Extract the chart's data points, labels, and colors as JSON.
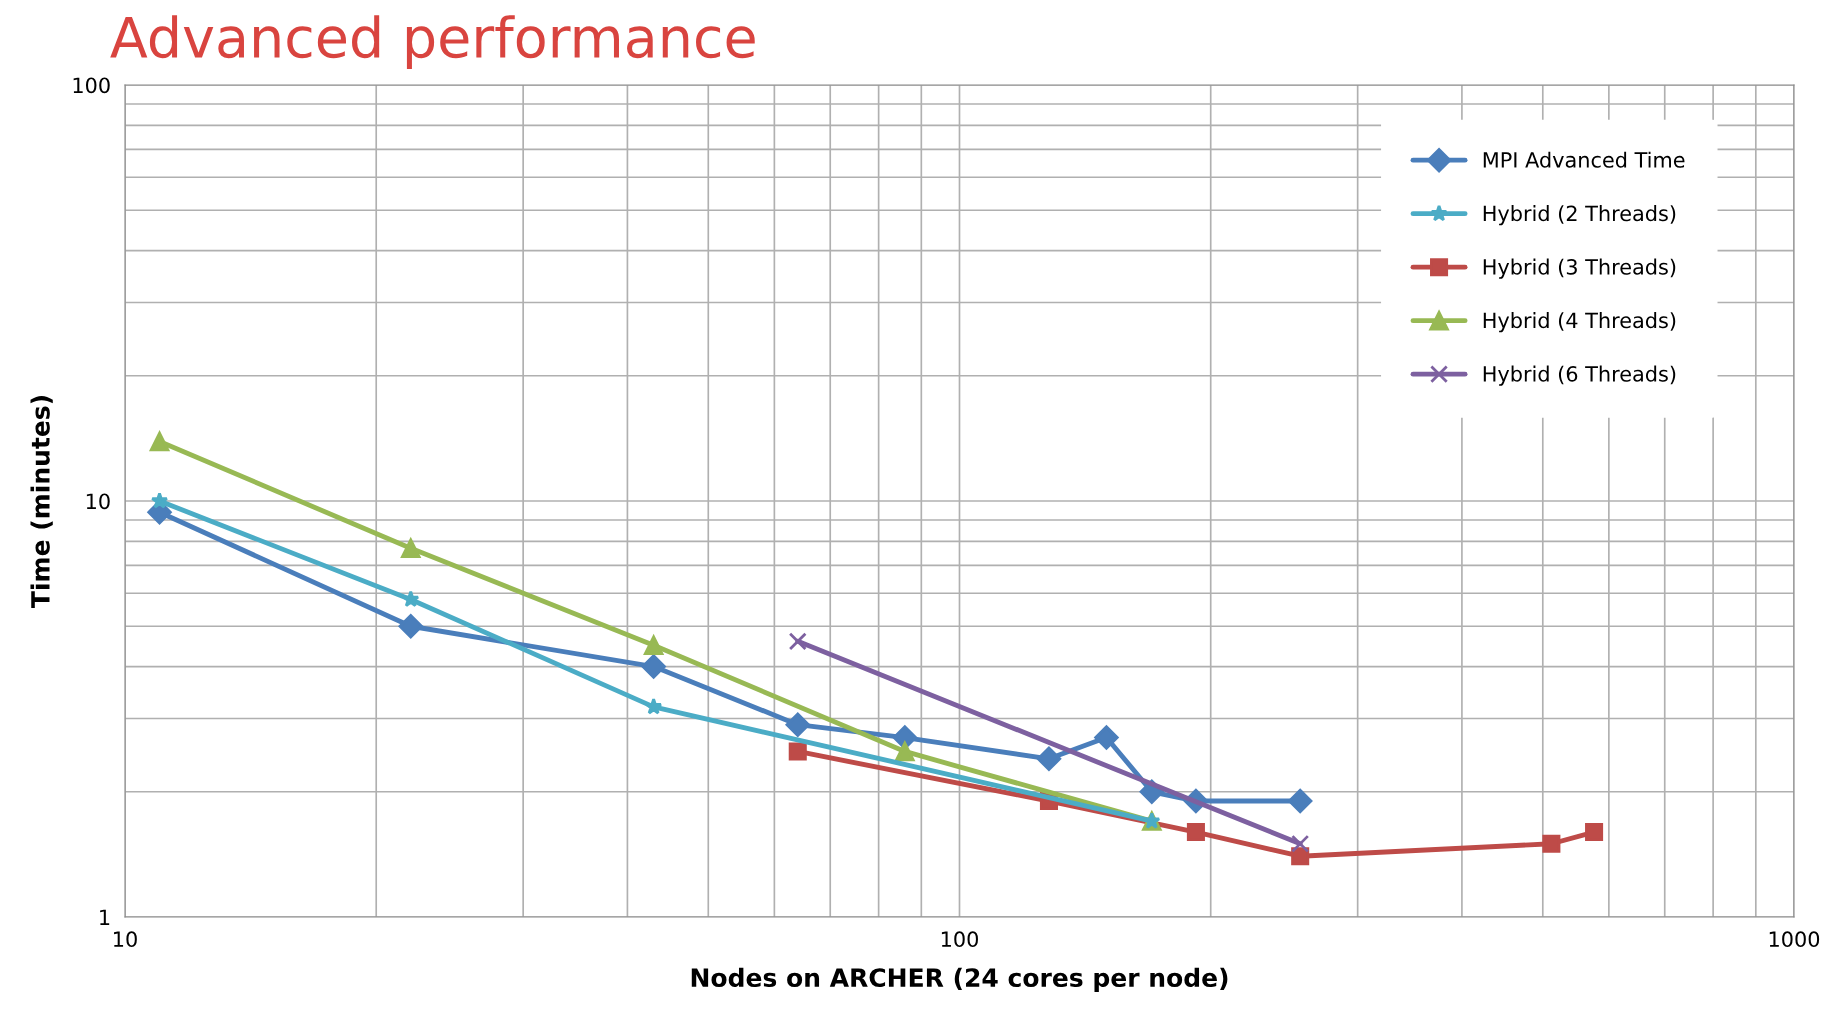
{
  "chart_data": {
    "type": "line",
    "title": "Advanced performance",
    "xlabel": "Nodes on ARCHER (24 cores per node)",
    "ylabel": "Time (minutes)",
    "log": "xy",
    "grid": true,
    "legend": "top right",
    "xlim": [
      10,
      1000
    ],
    "ylim": [
      1,
      100
    ],
    "xticks": [
      10,
      {
        "value": 20,
        "label": null
      },
      {
        "value": 30,
        "label": null
      },
      {
        "value": 40,
        "label": null
      },
      {
        "value": 50,
        "label": null
      },
      {
        "value": 60,
        "label": null
      },
      {
        "value": 70,
        "label": null
      },
      {
        "value": 80,
        "label": null
      },
      {
        "value": 90,
        "label": null
      },
      100,
      {
        "value": 200,
        "label": null
      },
      {
        "value": 300,
        "label": null
      },
      {
        "value": 400,
        "label": null
      },
      {
        "value": 500,
        "label": null
      },
      {
        "value": 600,
        "label": null
      },
      {
        "value": 700,
        "label": null
      },
      {
        "value": 800,
        "label": null
      },
      {
        "value": 900,
        "label": null
      },
      1000
    ],
    "yticks": [
      1,
      {
        "value": 2,
        "label": null
      },
      {
        "value": 3,
        "label": null
      },
      {
        "value": 4,
        "label": null
      },
      {
        "value": 5,
        "label": null
      },
      {
        "value": 6,
        "label": null
      },
      {
        "value": 7,
        "label": null
      },
      {
        "value": 8,
        "label": null
      },
      {
        "value": 9,
        "label": null
      },
      10,
      {
        "value": 20,
        "label": null
      },
      {
        "value": 30,
        "label": null
      },
      {
        "value": 40,
        "label": null
      },
      {
        "value": 50,
        "label": null
      },
      {
        "value": 60,
        "label": null
      },
      {
        "value": 70,
        "label": null
      },
      {
        "value": 80,
        "label": null
      },
      {
        "value": 90,
        "label": null
      },
      100
    ],
    "series": [
      {
        "name": "MPI Advanced Time",
        "color": "#4a7ebb",
        "marker": "diamond",
        "x": [
          11,
          22,
          43,
          64,
          86,
          128,
          150,
          170,
          192,
          256
        ],
        "values": [
          9.4,
          5.0,
          4.0,
          2.9,
          2.7,
          2.4,
          2.7,
          2.0,
          1.9,
          1.9
        ]
      },
      {
        "name": "Hybrid (2 Threads)",
        "color": "#4bacc6",
        "marker": "star",
        "x": [
          11,
          22,
          43,
          170
        ],
        "values": [
          10.0,
          5.8,
          3.2,
          1.7
        ]
      },
      {
        "name": "Hybrid (3 Threads)",
        "color": "#be4b48",
        "marker": "square",
        "x": [
          64,
          128,
          192,
          256,
          512,
          576
        ],
        "values": [
          2.5,
          1.9,
          1.6,
          1.4,
          1.5,
          1.6
        ]
      },
      {
        "name": "Hybrid (4 Threads)",
        "color": "#98b954",
        "marker": "triangle",
        "x": [
          11,
          22,
          43,
          86,
          170
        ],
        "values": [
          13.9,
          7.7,
          4.5,
          2.5,
          1.7
        ]
      },
      {
        "name": "Hybrid (6 Threads)",
        "color": "#7d60a0",
        "marker": "cross",
        "x": [
          64,
          256
        ],
        "values": [
          4.6,
          1.5
        ]
      }
    ]
  }
}
